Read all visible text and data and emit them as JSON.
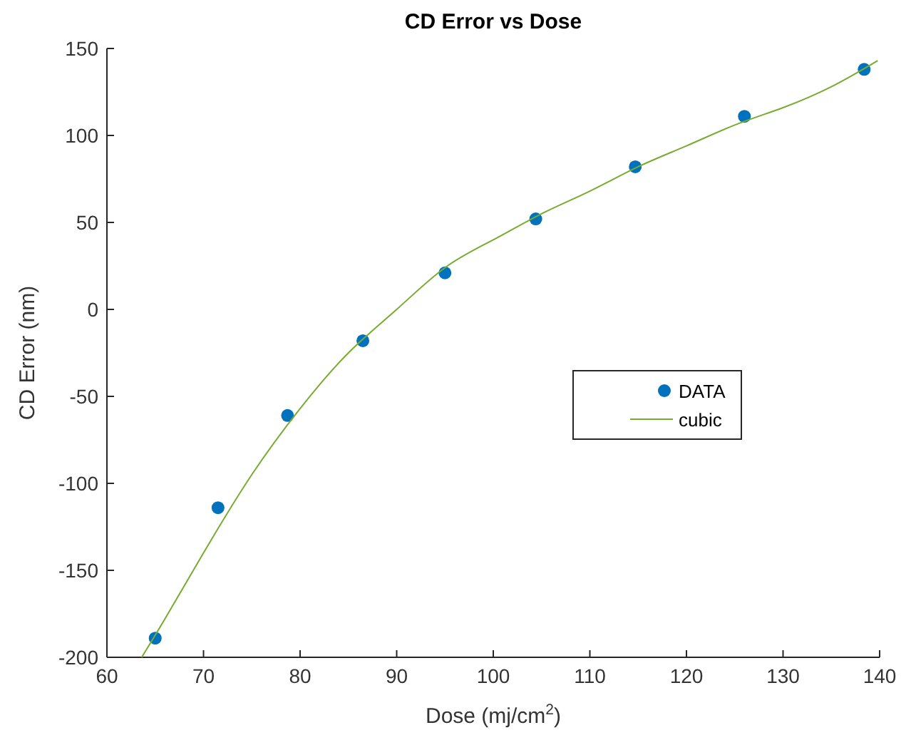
{
  "chart_data": {
    "type": "scatter",
    "title": "CD Error vs Dose",
    "xlabel": "Dose (mj/cm$^{2}$)",
    "ylabel": "CD Error (nm)",
    "xlim": [
      60,
      140
    ],
    "xticks": [
      60,
      70,
      80,
      90,
      100,
      110,
      120,
      130,
      140
    ],
    "ylim": [
      -200,
      150
    ],
    "yticks": [
      -200,
      -150,
      -100,
      -50,
      0,
      50,
      100,
      150
    ],
    "grid": false,
    "legend": "right",
    "series": [
      {
        "name": "DATA",
        "type": "scatter",
        "marker": "circle",
        "color": "#0072bd",
        "x": [
          65,
          71.5,
          78.7,
          86.5,
          95,
          104.4,
          114.7,
          126,
          138.4
        ],
        "values": [
          -189,
          -114,
          -61,
          -18,
          21,
          52,
          82,
          111,
          138
        ]
      },
      {
        "name": "cubic",
        "type": "line",
        "marker": "none",
        "line_style": "solid",
        "color": "#77ac30",
        "x": [
          63.6,
          66,
          70,
          75,
          80,
          85,
          90,
          95,
          100,
          105,
          110,
          115,
          120,
          125,
          130,
          135,
          139.8
        ],
        "values": [
          -200,
          -178,
          -140,
          -95,
          -57,
          -25,
          0,
          24,
          40,
          55,
          68,
          82,
          94,
          106,
          116,
          128,
          143
        ]
      }
    ]
  }
}
